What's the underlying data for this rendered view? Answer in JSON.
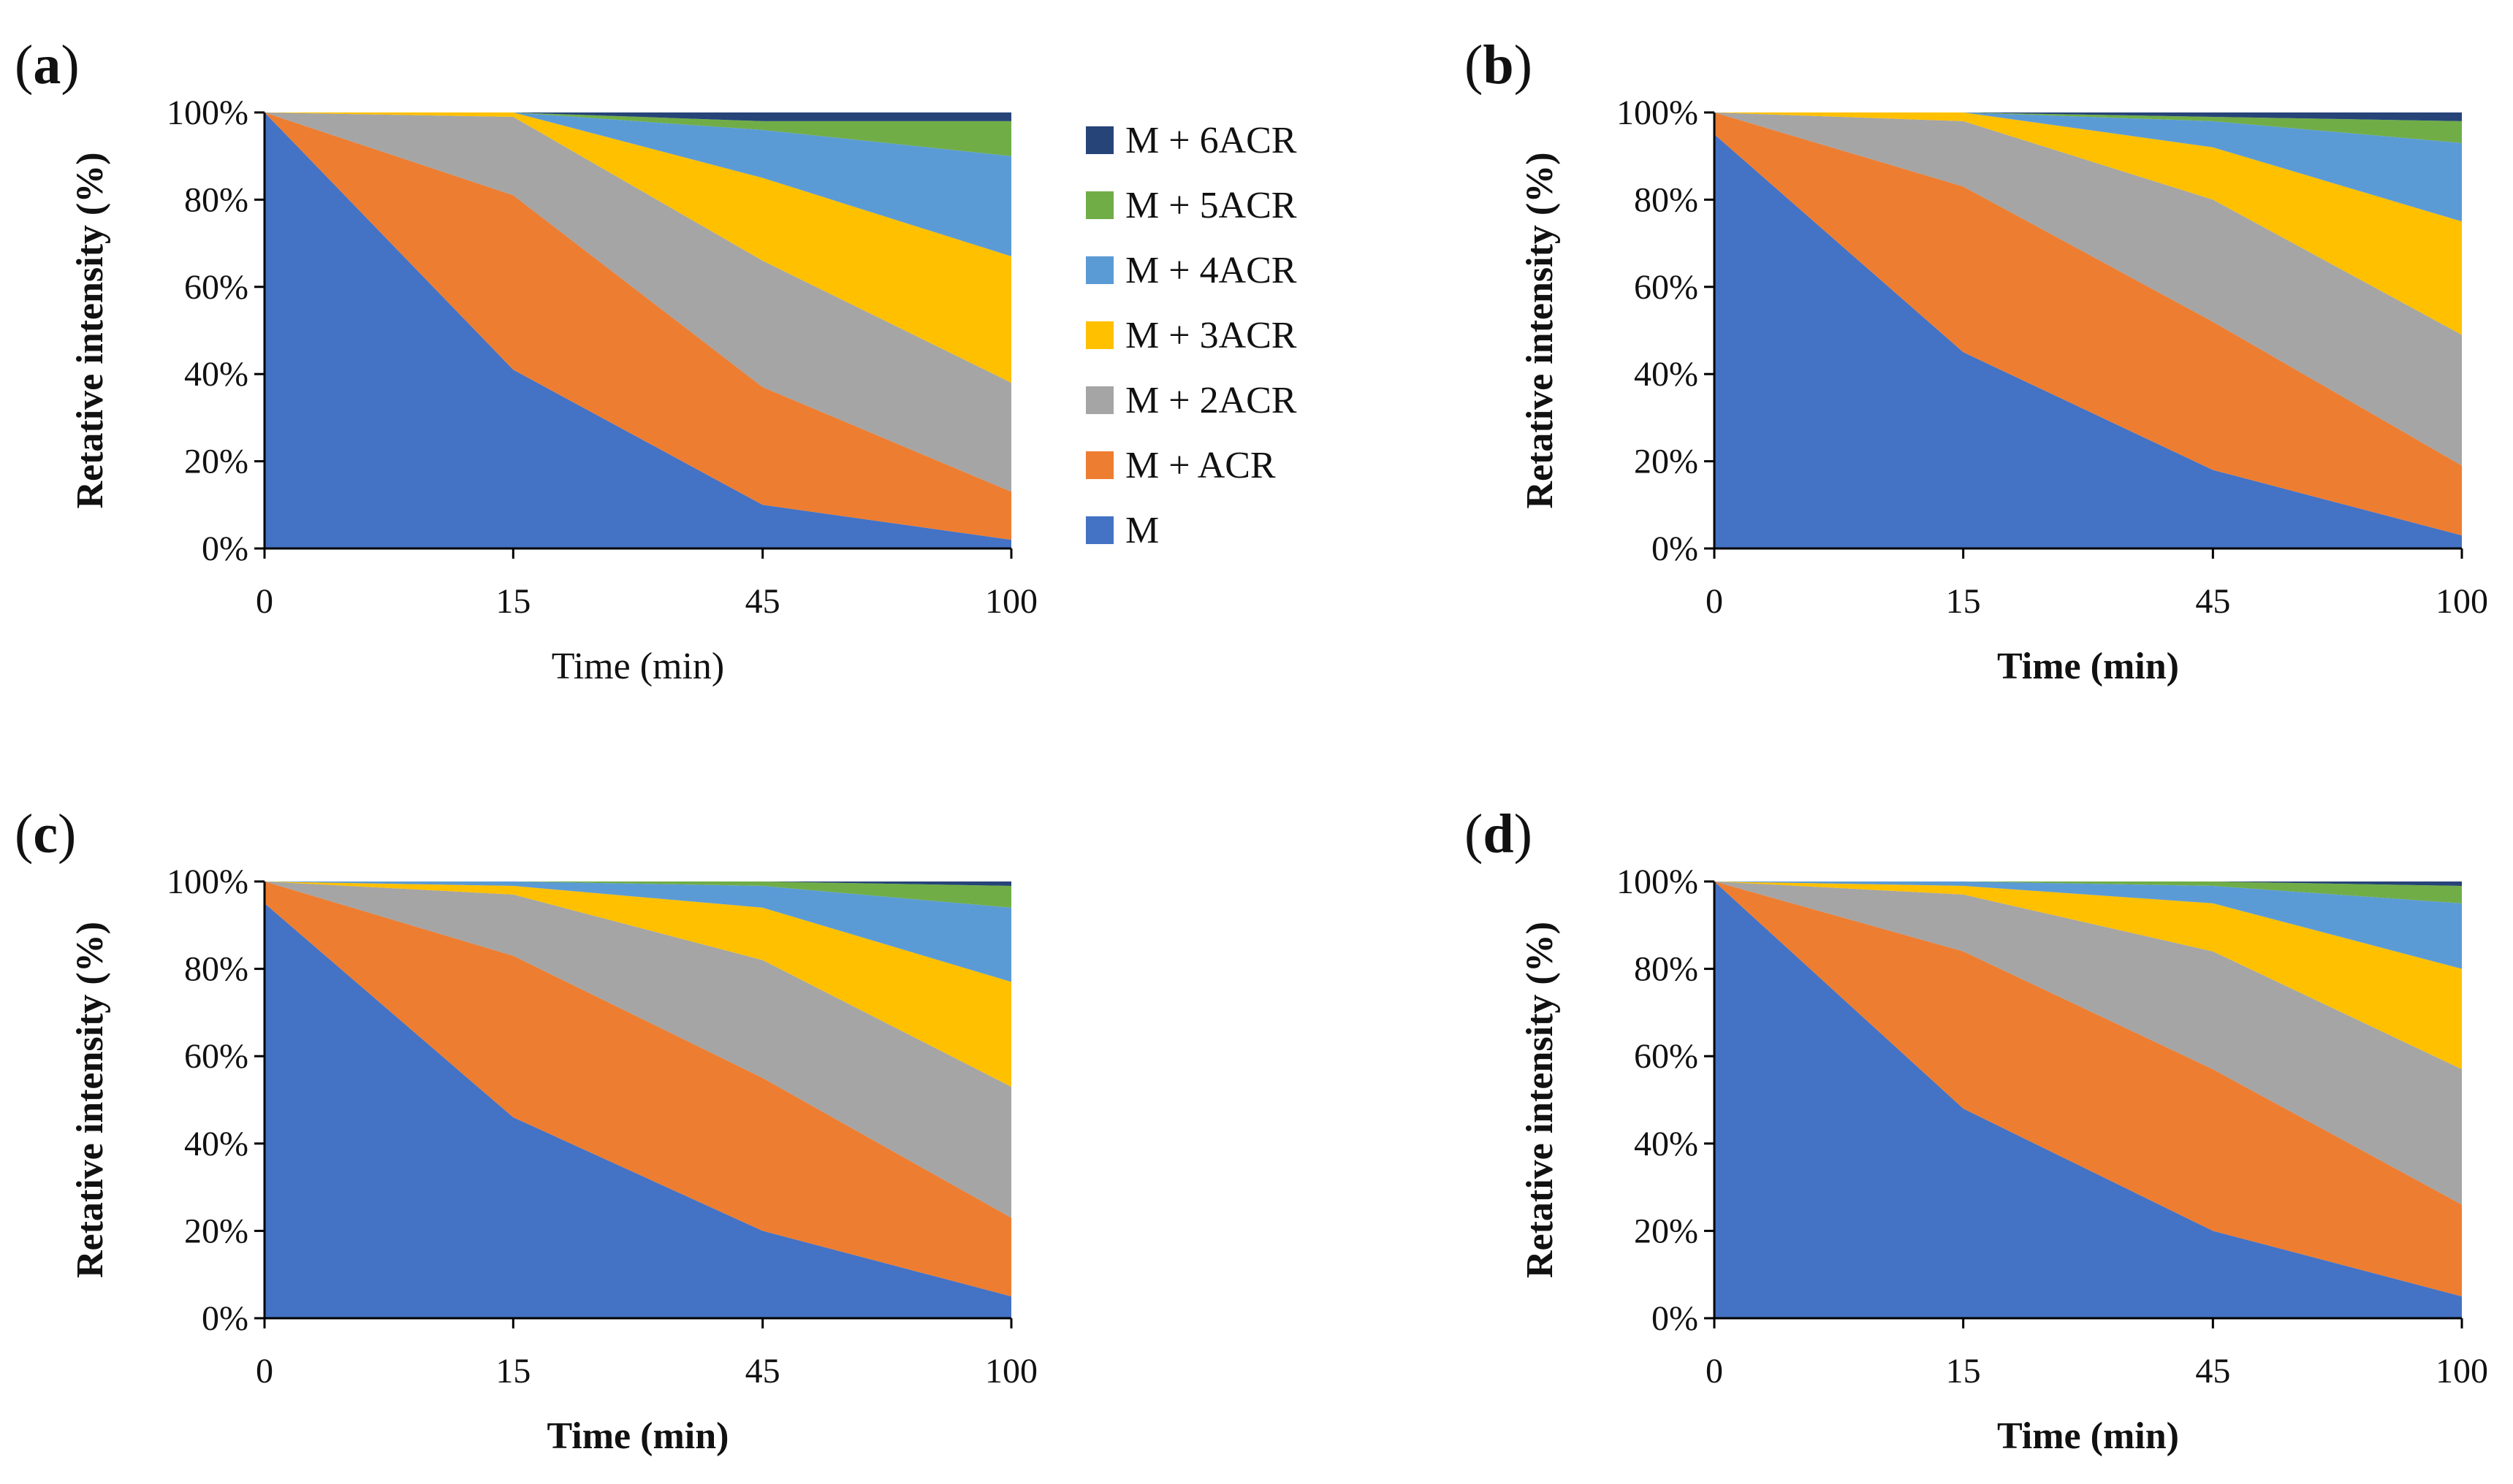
{
  "chart_data": [
    {
      "type": "area",
      "stacked": true,
      "panel_label": "a",
      "x": [
        "0",
        "15",
        "45",
        "100"
      ],
      "xlabel": "Time (min)",
      "xlabel_bold": false,
      "ylabel": "Retative intensity (%)",
      "yticks": [
        "0%",
        "20%",
        "40%",
        "60%",
        "80%",
        "100%"
      ],
      "ylim": [
        0,
        100
      ],
      "series": [
        {
          "name": "M",
          "values": [
            100,
            41,
            10,
            2
          ]
        },
        {
          "name": "M + ACR",
          "values": [
            0,
            40,
            27,
            11
          ]
        },
        {
          "name": "M + 2ACR",
          "values": [
            0,
            18,
            29,
            25
          ]
        },
        {
          "name": "M + 3ACR",
          "values": [
            0,
            1,
            19,
            29
          ]
        },
        {
          "name": "M + 4ACR",
          "values": [
            0,
            0,
            11,
            23
          ]
        },
        {
          "name": "M + 5ACR",
          "values": [
            0,
            0,
            2,
            8
          ]
        },
        {
          "name": "M + 6ACR",
          "values": [
            0,
            0,
            2,
            2
          ]
        }
      ]
    },
    {
      "type": "area",
      "stacked": true,
      "panel_label": "b",
      "x": [
        "0",
        "15",
        "45",
        "100"
      ],
      "xlabel": "Time (min)",
      "xlabel_bold": true,
      "ylabel": "Retative intensity (%)",
      "yticks": [
        "0%",
        "20%",
        "40%",
        "60%",
        "80%",
        "100%"
      ],
      "ylim": [
        0,
        100
      ],
      "series": [
        {
          "name": "M",
          "values": [
            95,
            45,
            18,
            3
          ]
        },
        {
          "name": "M + ACR",
          "values": [
            5,
            38,
            34,
            16
          ]
        },
        {
          "name": "M + 2ACR",
          "values": [
            0,
            15,
            28,
            30
          ]
        },
        {
          "name": "M + 3ACR",
          "values": [
            0,
            2,
            12,
            26
          ]
        },
        {
          "name": "M + 4ACR",
          "values": [
            0,
            0,
            6,
            18
          ]
        },
        {
          "name": "M + 5ACR",
          "values": [
            0,
            0,
            1,
            5
          ]
        },
        {
          "name": "M + 6ACR",
          "values": [
            0,
            0,
            1,
            2
          ]
        }
      ]
    },
    {
      "type": "area",
      "stacked": true,
      "panel_label": "c",
      "x": [
        "0",
        "15",
        "45",
        "100"
      ],
      "xlabel": "Time (min)",
      "xlabel_bold": true,
      "ylabel": "Retative intensity (%)",
      "yticks": [
        "0%",
        "20%",
        "40%",
        "60%",
        "80%",
        "100%"
      ],
      "ylim": [
        0,
        100
      ],
      "series": [
        {
          "name": "M",
          "values": [
            95,
            46,
            20,
            5
          ]
        },
        {
          "name": "M + ACR",
          "values": [
            5,
            37,
            35,
            18
          ]
        },
        {
          "name": "M + 2ACR",
          "values": [
            0,
            14,
            27,
            30
          ]
        },
        {
          "name": "M + 3ACR",
          "values": [
            0,
            2,
            12,
            24
          ]
        },
        {
          "name": "M + 4ACR",
          "values": [
            0,
            1,
            5,
            17
          ]
        },
        {
          "name": "M + 5ACR",
          "values": [
            0,
            0,
            1,
            5
          ]
        },
        {
          "name": "M + 6ACR",
          "values": [
            0,
            0,
            0,
            1
          ]
        }
      ]
    },
    {
      "type": "area",
      "stacked": true,
      "panel_label": "d",
      "x": [
        "0",
        "15",
        "45",
        "100"
      ],
      "xlabel": "Time (min)",
      "xlabel_bold": true,
      "ylabel": "Retative intensity (%)",
      "yticks": [
        "0%",
        "20%",
        "40%",
        "60%",
        "80%",
        "100%"
      ],
      "ylim": [
        0,
        100
      ],
      "series": [
        {
          "name": "M",
          "values": [
            100,
            48,
            20,
            5
          ]
        },
        {
          "name": "M + ACR",
          "values": [
            0,
            36,
            37,
            21
          ]
        },
        {
          "name": "M + 2ACR",
          "values": [
            0,
            13,
            27,
            31
          ]
        },
        {
          "name": "M + 3ACR",
          "values": [
            0,
            2,
            11,
            23
          ]
        },
        {
          "name": "M + 4ACR",
          "values": [
            0,
            1,
            4,
            15
          ]
        },
        {
          "name": "M + 5ACR",
          "values": [
            0,
            0,
            1,
            4
          ]
        },
        {
          "name": "M + 6ACR",
          "values": [
            0,
            0,
            0,
            1
          ]
        }
      ]
    }
  ],
  "legend": {
    "placement": "right of panel a",
    "order": [
      "M + 6ACR",
      "M + 5ACR",
      "M + 4ACR",
      "M + 3ACR",
      "M + 2ACR",
      "M + ACR",
      "M"
    ]
  },
  "colors": {
    "M": "#4472C4",
    "M + ACR": "#ED7D31",
    "M + 2ACR": "#A5A5A5",
    "M + 3ACR": "#FFC000",
    "M + 4ACR": "#5B9BD5",
    "M + 5ACR": "#70AD47",
    "M + 6ACR": "#264478",
    "axis": "#000000"
  }
}
